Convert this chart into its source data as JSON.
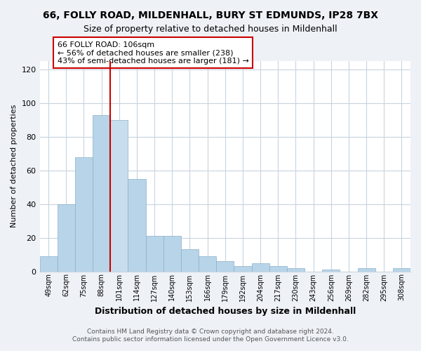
{
  "title": "66, FOLLY ROAD, MILDENHALL, BURY ST EDMUNDS, IP28 7BX",
  "subtitle": "Size of property relative to detached houses in Mildenhall",
  "xlabel": "Distribution of detached houses by size in Mildenhall",
  "ylabel": "Number of detached properties",
  "bar_labels": [
    "49sqm",
    "62sqm",
    "75sqm",
    "88sqm",
    "101sqm",
    "114sqm",
    "127sqm",
    "140sqm",
    "153sqm",
    "166sqm",
    "179sqm",
    "192sqm",
    "204sqm",
    "217sqm",
    "230sqm",
    "243sqm",
    "256sqm",
    "269sqm",
    "282sqm",
    "295sqm",
    "308sqm"
  ],
  "bar_values": [
    9,
    40,
    68,
    93,
    90,
    55,
    21,
    21,
    13,
    9,
    6,
    3,
    5,
    3,
    2,
    0,
    1,
    0,
    2,
    0,
    2
  ],
  "bar_color": "#b8d4e8",
  "highlight_bar_index": 4,
  "highlight_color": "#c8dded",
  "vline_color": "#cc0000",
  "annotation_text": "66 FOLLY ROAD: 106sqm\n← 56% of detached houses are smaller (238)\n43% of semi-detached houses are larger (181) →",
  "annotation_box_color": "#ffffff",
  "annotation_box_edge_color": "#cc0000",
  "ylim": [
    0,
    125
  ],
  "yticks": [
    0,
    20,
    40,
    60,
    80,
    100,
    120
  ],
  "footer_line1": "Contains HM Land Registry data © Crown copyright and database right 2024.",
  "footer_line2": "Contains public sector information licensed under the Open Government Licence v3.0.",
  "bg_color": "#eef2f7",
  "plot_bg_color": "#ffffff",
  "grid_color": "#c8d4e0"
}
